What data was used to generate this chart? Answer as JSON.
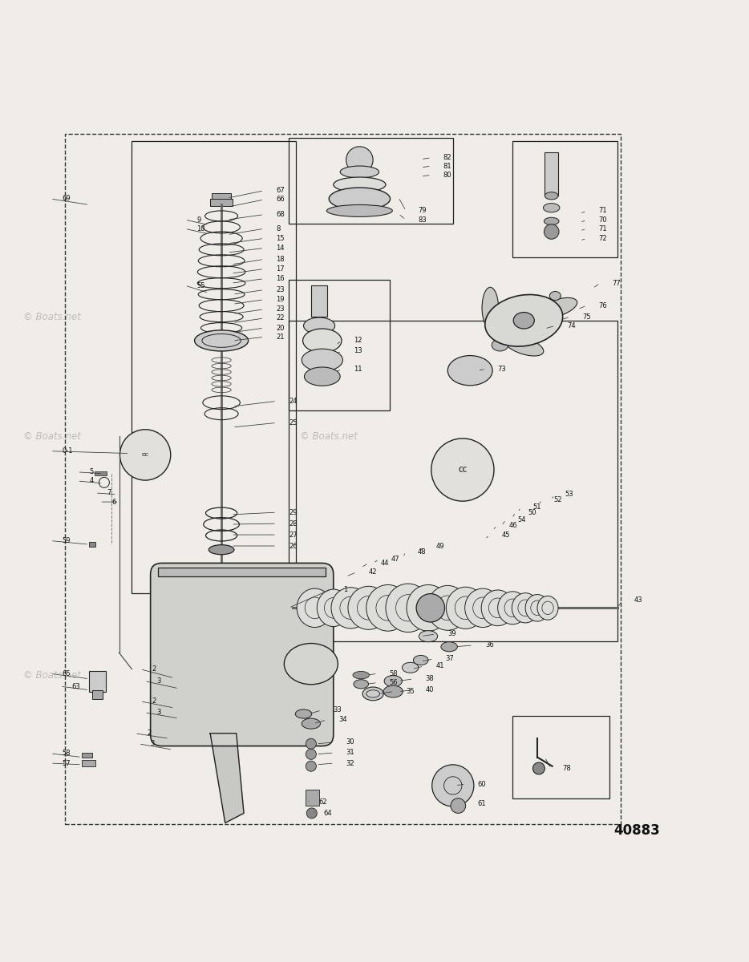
{
  "bg_color": "#f0ede8",
  "border_color": "#222222",
  "watermark": "© Boats.net",
  "part_number": "40883",
  "fig_width": 9.34,
  "fig_height": 12.0,
  "dpi": 100
}
